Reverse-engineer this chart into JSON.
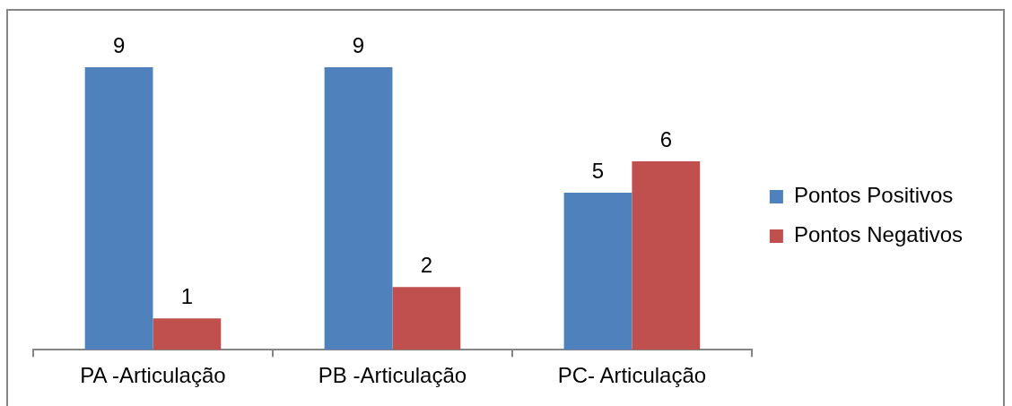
{
  "chart_data": {
    "type": "bar",
    "categories": [
      "PA -Articulação",
      "PB -Articulação",
      "PC- Articulação"
    ],
    "series": [
      {
        "name": "Pontos Positivos",
        "color": "#4f81bd",
        "values": [
          9,
          9,
          5
        ]
      },
      {
        "name": "Pontos Negativos",
        "color": "#c0504d",
        "values": [
          1,
          2,
          6
        ]
      }
    ],
    "data_labels": true,
    "legend": "right",
    "tick_labels": "x"
  }
}
